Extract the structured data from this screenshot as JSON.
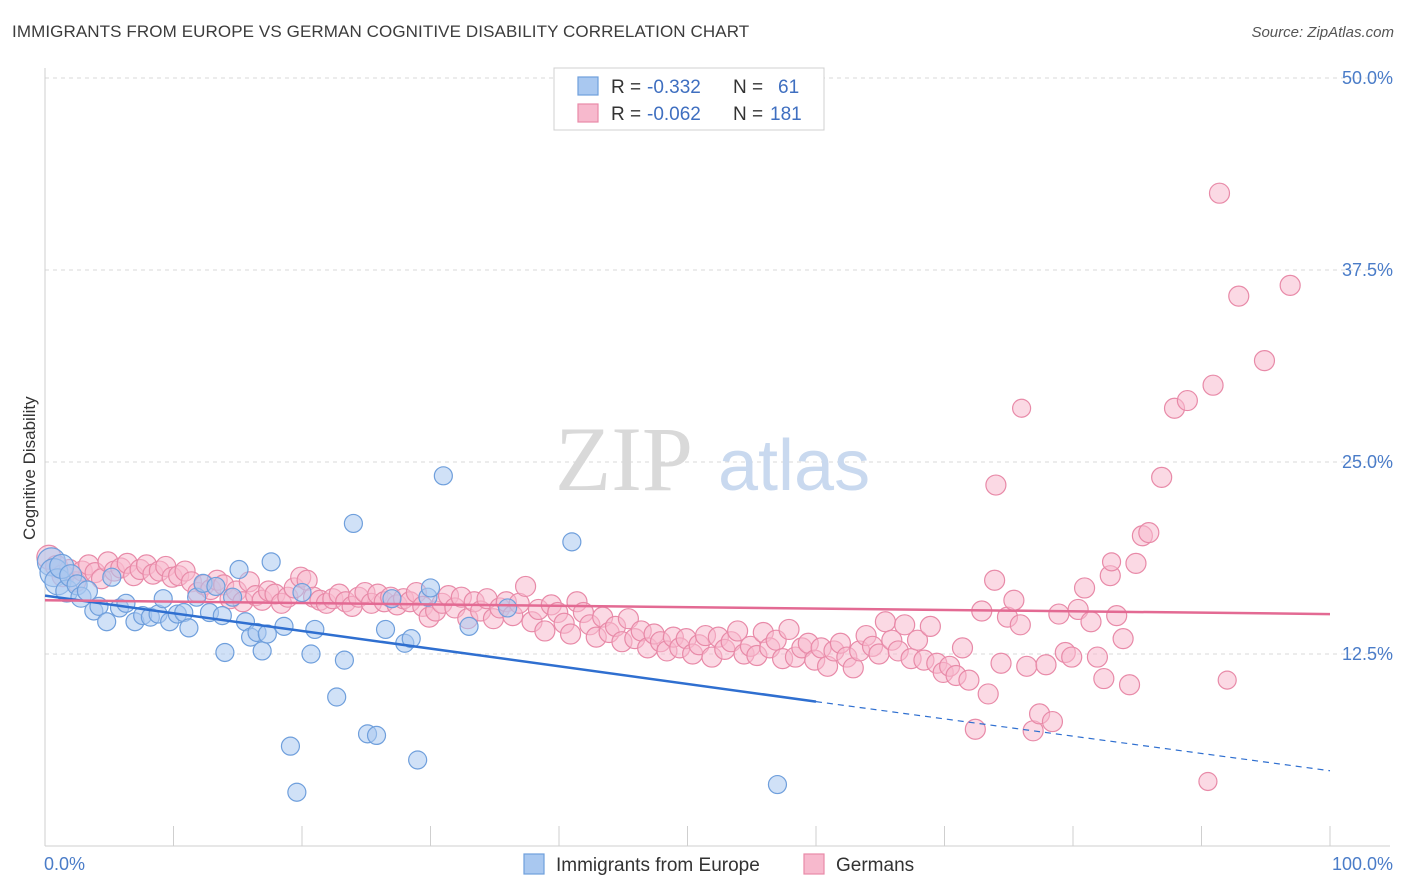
{
  "title": "IMMIGRANTS FROM EUROPE VS GERMAN COGNITIVE DISABILITY CORRELATION CHART",
  "source": "Source: ZipAtlas.com",
  "watermark": {
    "zip": "ZIP",
    "atlas": "atlas"
  },
  "colors": {
    "blue_fill": "#a9c8f0",
    "blue_stroke": "#6f9fdc",
    "blue_line": "#2f6fd0",
    "pink_fill": "#f7b9cd",
    "pink_stroke": "#e88aa8",
    "pink_line": "#e36a93",
    "grid": "#d8d8d8",
    "tick_text": "#4a7cc8"
  },
  "legend_top": {
    "rows": [
      {
        "r_label": "R =",
        "r_value": "-0.332",
        "n_label": "N =",
        "n_value": "61",
        "color": "blue"
      },
      {
        "r_label": "R =",
        "r_value": "-0.062",
        "n_label": "N =",
        "n_value": "181",
        "color": "pink"
      }
    ]
  },
  "chart_data": {
    "type": "scatter",
    "ylabel": "Cognitive Disability",
    "xlim": [
      0,
      100
    ],
    "ylim": [
      0,
      50
    ],
    "x_tick_labels": [
      "0.0%",
      "100.0%"
    ],
    "y_ticks": [
      {
        "value": 12.5,
        "label": "12.5%"
      },
      {
        "value": 25.0,
        "label": "25.0%"
      },
      {
        "value": 37.5,
        "label": "37.5%"
      },
      {
        "value": 50.0,
        "label": "50.0%"
      }
    ],
    "grid": true,
    "legend_position": "bottom",
    "series": [
      {
        "name": "Immigrants from Europe",
        "color": "blue",
        "trend": {
          "x0": 0,
          "y0": 16.3,
          "x1": 60,
          "y1": 9.4,
          "dash_to_x": 100,
          "dash_to_y": 4.9
        },
        "points": [
          [
            0.5,
            18.5
          ],
          [
            0.7,
            17.8
          ],
          [
            1.0,
            17.2
          ],
          [
            1.3,
            18.2
          ],
          [
            1.7,
            16.6
          ],
          [
            2.0,
            17.6
          ],
          [
            2.5,
            17.0
          ],
          [
            2.8,
            16.2
          ],
          [
            3.3,
            16.6
          ],
          [
            3.8,
            15.3
          ],
          [
            4.2,
            15.6
          ],
          [
            4.8,
            14.6
          ],
          [
            5.2,
            17.5
          ],
          [
            5.8,
            15.5
          ],
          [
            6.3,
            15.8
          ],
          [
            7.0,
            14.6
          ],
          [
            7.6,
            15.0
          ],
          [
            8.2,
            14.9
          ],
          [
            8.8,
            15.1
          ],
          [
            9.2,
            16.1
          ],
          [
            9.7,
            14.6
          ],
          [
            10.3,
            15.1
          ],
          [
            10.8,
            15.2
          ],
          [
            11.2,
            14.2
          ],
          [
            11.8,
            16.2
          ],
          [
            12.3,
            17.1
          ],
          [
            12.8,
            15.2
          ],
          [
            13.3,
            16.9
          ],
          [
            13.8,
            15.0
          ],
          [
            14.0,
            12.6
          ],
          [
            14.6,
            16.2
          ],
          [
            15.1,
            18.0
          ],
          [
            15.6,
            14.6
          ],
          [
            16.0,
            13.6
          ],
          [
            16.5,
            13.9
          ],
          [
            16.9,
            12.7
          ],
          [
            17.3,
            13.8
          ],
          [
            17.6,
            18.5
          ],
          [
            18.6,
            14.3
          ],
          [
            19.1,
            6.5
          ],
          [
            19.6,
            3.5
          ],
          [
            20.0,
            16.5
          ],
          [
            20.7,
            12.5
          ],
          [
            21.0,
            14.1
          ],
          [
            22.7,
            9.7
          ],
          [
            23.3,
            12.1
          ],
          [
            24.0,
            21.0
          ],
          [
            25.1,
            7.3
          ],
          [
            25.8,
            7.2
          ],
          [
            26.5,
            14.1
          ],
          [
            27.0,
            16.1
          ],
          [
            28.0,
            13.2
          ],
          [
            28.5,
            13.5
          ],
          [
            29.0,
            5.6
          ],
          [
            29.8,
            16.2
          ],
          [
            30.0,
            16.8
          ],
          [
            31.0,
            24.1
          ],
          [
            33.0,
            14.3
          ],
          [
            36.0,
            15.5
          ],
          [
            41.0,
            19.8
          ],
          [
            57.0,
            4.0
          ]
        ],
        "sizes": [
          14,
          14,
          13,
          12,
          11,
          11,
          10,
          10,
          10,
          9,
          9,
          9,
          9,
          9,
          9,
          9,
          9,
          9,
          9,
          9,
          9,
          9,
          9,
          9,
          9,
          9,
          9,
          9,
          9,
          9,
          9,
          9,
          9,
          9,
          9,
          9,
          9,
          9,
          9,
          9,
          9,
          9,
          9,
          9,
          9,
          9,
          9,
          9,
          9,
          9,
          9,
          9,
          9,
          9,
          9,
          9,
          9,
          9,
          9,
          9,
          9
        ]
      },
      {
        "name": "Germans",
        "color": "pink",
        "trend": {
          "x0": 0,
          "y0": 16.0,
          "x1": 100,
          "y1": 15.1
        },
        "points": [
          [
            0.3,
            18.8
          ],
          [
            0.9,
            18.2
          ],
          [
            1.4,
            17.6
          ],
          [
            1.9,
            18.0
          ],
          [
            2.4,
            17.2
          ],
          [
            2.9,
            17.9
          ],
          [
            3.4,
            18.3
          ],
          [
            3.9,
            17.8
          ],
          [
            4.4,
            17.4
          ],
          [
            4.9,
            18.5
          ],
          [
            5.4,
            17.9
          ],
          [
            5.9,
            18.1
          ],
          [
            6.4,
            18.4
          ],
          [
            6.9,
            17.6
          ],
          [
            7.4,
            18.0
          ],
          [
            7.9,
            18.3
          ],
          [
            8.4,
            17.7
          ],
          [
            8.9,
            17.9
          ],
          [
            9.4,
            18.2
          ],
          [
            9.9,
            17.5
          ],
          [
            10.4,
            17.6
          ],
          [
            10.9,
            17.9
          ],
          [
            11.4,
            17.2
          ],
          [
            11.9,
            16.5
          ],
          [
            12.4,
            17.0
          ],
          [
            12.9,
            16.7
          ],
          [
            13.4,
            17.3
          ],
          [
            13.9,
            17.0
          ],
          [
            14.4,
            16.1
          ],
          [
            14.9,
            16.6
          ],
          [
            15.4,
            15.9
          ],
          [
            15.9,
            17.2
          ],
          [
            16.4,
            16.3
          ],
          [
            16.9,
            16.0
          ],
          [
            17.4,
            16.6
          ],
          [
            17.9,
            16.4
          ],
          [
            18.4,
            15.8
          ],
          [
            18.9,
            16.2
          ],
          [
            19.4,
            16.8
          ],
          [
            19.9,
            17.5
          ],
          [
            20.4,
            17.3
          ],
          [
            20.9,
            16.2
          ],
          [
            21.4,
            16.0
          ],
          [
            21.9,
            15.8
          ],
          [
            22.4,
            16.1
          ],
          [
            22.9,
            16.4
          ],
          [
            23.4,
            15.9
          ],
          [
            23.9,
            15.6
          ],
          [
            24.4,
            16.2
          ],
          [
            24.9,
            16.5
          ],
          [
            25.4,
            15.8
          ],
          [
            25.9,
            16.4
          ],
          [
            26.4,
            15.9
          ],
          [
            26.9,
            16.2
          ],
          [
            27.4,
            15.7
          ],
          [
            27.9,
            16.1
          ],
          [
            28.4,
            15.9
          ],
          [
            28.9,
            16.5
          ],
          [
            29.4,
            15.6
          ],
          [
            29.9,
            14.9
          ],
          [
            30.4,
            15.3
          ],
          [
            30.9,
            15.8
          ],
          [
            31.4,
            16.3
          ],
          [
            31.9,
            15.5
          ],
          [
            32.4,
            16.2
          ],
          [
            32.9,
            14.8
          ],
          [
            33.4,
            15.9
          ],
          [
            33.9,
            15.3
          ],
          [
            34.4,
            16.1
          ],
          [
            34.9,
            14.8
          ],
          [
            35.4,
            15.5
          ],
          [
            35.9,
            15.9
          ],
          [
            36.4,
            15.0
          ],
          [
            36.9,
            15.8
          ],
          [
            37.4,
            16.9
          ],
          [
            37.9,
            14.6
          ],
          [
            38.4,
            15.4
          ],
          [
            38.9,
            14.0
          ],
          [
            39.4,
            15.7
          ],
          [
            39.9,
            15.2
          ],
          [
            40.4,
            14.5
          ],
          [
            40.9,
            13.8
          ],
          [
            41.4,
            15.9
          ],
          [
            41.9,
            15.2
          ],
          [
            42.4,
            14.4
          ],
          [
            42.9,
            13.6
          ],
          [
            43.4,
            14.9
          ],
          [
            43.9,
            13.9
          ],
          [
            44.4,
            14.3
          ],
          [
            44.9,
            13.3
          ],
          [
            45.4,
            14.8
          ],
          [
            45.9,
            13.5
          ],
          [
            46.4,
            14.0
          ],
          [
            46.9,
            12.9
          ],
          [
            47.4,
            13.8
          ],
          [
            47.9,
            13.3
          ],
          [
            48.4,
            12.7
          ],
          [
            48.9,
            13.6
          ],
          [
            49.4,
            12.9
          ],
          [
            49.9,
            13.5
          ],
          [
            50.4,
            12.5
          ],
          [
            50.9,
            13.1
          ],
          [
            51.4,
            13.7
          ],
          [
            51.9,
            12.3
          ],
          [
            52.4,
            13.6
          ],
          [
            52.9,
            12.8
          ],
          [
            53.4,
            13.3
          ],
          [
            53.9,
            14.0
          ],
          [
            54.4,
            12.5
          ],
          [
            54.9,
            13.0
          ],
          [
            55.4,
            12.4
          ],
          [
            55.9,
            13.9
          ],
          [
            56.4,
            12.9
          ],
          [
            56.9,
            13.4
          ],
          [
            57.4,
            12.2
          ],
          [
            57.9,
            14.1
          ],
          [
            58.4,
            12.3
          ],
          [
            58.9,
            12.9
          ],
          [
            59.4,
            13.2
          ],
          [
            59.9,
            12.1
          ],
          [
            60.4,
            12.9
          ],
          [
            60.9,
            11.7
          ],
          [
            61.4,
            12.7
          ],
          [
            61.9,
            13.2
          ],
          [
            62.4,
            12.3
          ],
          [
            62.9,
            11.6
          ],
          [
            63.4,
            12.7
          ],
          [
            63.9,
            13.7
          ],
          [
            64.4,
            13.0
          ],
          [
            64.9,
            12.5
          ],
          [
            65.4,
            14.6
          ],
          [
            65.9,
            13.4
          ],
          [
            66.4,
            12.7
          ],
          [
            66.9,
            14.4
          ],
          [
            67.4,
            12.2
          ],
          [
            67.9,
            13.4
          ],
          [
            68.4,
            12.1
          ],
          [
            68.9,
            14.3
          ],
          [
            69.4,
            11.9
          ],
          [
            69.9,
            11.3
          ],
          [
            70.4,
            11.7
          ],
          [
            70.9,
            11.1
          ],
          [
            71.4,
            12.9
          ],
          [
            71.9,
            10.8
          ],
          [
            72.4,
            7.6
          ],
          [
            72.9,
            15.3
          ],
          [
            73.4,
            9.9
          ],
          [
            73.9,
            17.3
          ],
          [
            74.4,
            11.9
          ],
          [
            74.9,
            14.9
          ],
          [
            75.4,
            16.0
          ],
          [
            75.9,
            14.4
          ],
          [
            76.4,
            11.7
          ],
          [
            76.9,
            7.5
          ],
          [
            77.4,
            8.6
          ],
          [
            77.9,
            11.8
          ],
          [
            78.4,
            8.1
          ],
          [
            78.9,
            15.1
          ],
          [
            79.4,
            12.6
          ],
          [
            79.9,
            12.3
          ],
          [
            80.4,
            15.4
          ],
          [
            80.9,
            16.8
          ],
          [
            81.4,
            14.6
          ],
          [
            81.9,
            12.3
          ],
          [
            82.4,
            10.9
          ],
          [
            82.9,
            17.6
          ],
          [
            83.4,
            15.0
          ],
          [
            83.9,
            13.5
          ],
          [
            84.4,
            10.5
          ],
          [
            84.9,
            18.4
          ],
          [
            85.4,
            20.2
          ],
          [
            85.9,
            20.4
          ],
          [
            86.9,
            24.0
          ],
          [
            87.9,
            28.5
          ],
          [
            88.9,
            29.0
          ],
          [
            90.9,
            30.0
          ],
          [
            91.4,
            42.5
          ],
          [
            92.9,
            35.8
          ],
          [
            94.9,
            31.6
          ],
          [
            96.9,
            36.5
          ],
          [
            74.0,
            23.5
          ],
          [
            76.0,
            28.5
          ],
          [
            83.0,
            18.5
          ],
          [
            90.5,
            4.2
          ],
          [
            92.0,
            10.8
          ]
        ],
        "sizes": [
          12,
          11,
          11,
          10,
          10,
          10,
          10,
          10,
          10,
          10,
          10,
          10,
          10,
          10,
          10,
          10,
          10,
          10,
          10,
          10,
          10,
          10,
          10,
          10,
          10,
          10,
          10,
          10,
          10,
          10,
          10,
          10,
          10,
          10,
          10,
          10,
          10,
          10,
          10,
          10,
          10,
          10,
          10,
          10,
          10,
          10,
          10,
          10,
          10,
          10,
          10,
          10,
          10,
          10,
          10,
          10,
          10,
          10,
          10,
          10,
          10,
          10,
          10,
          10,
          10,
          10,
          10,
          10,
          10,
          10,
          10,
          10,
          10,
          10,
          10,
          10,
          10,
          10,
          10,
          10,
          10,
          10,
          10,
          10,
          10,
          10,
          10,
          10,
          10,
          10,
          10,
          10,
          10,
          10,
          10,
          10,
          10,
          10,
          10,
          10,
          10,
          10,
          10,
          10,
          10,
          10,
          10,
          10,
          10,
          10,
          10,
          10,
          10,
          10,
          10,
          10,
          10,
          10,
          10,
          10,
          10,
          10,
          10,
          10,
          10,
          10,
          10,
          10,
          10,
          10,
          10,
          10,
          10,
          10,
          10,
          10,
          10,
          10,
          10,
          10,
          10,
          10,
          10,
          10,
          10,
          10,
          10,
          10,
          10,
          10,
          10,
          10,
          10,
          10,
          10,
          10,
          10,
          10,
          10,
          10,
          10,
          10,
          10,
          10,
          10,
          10,
          10,
          10,
          10,
          10,
          10,
          10,
          10,
          10,
          10,
          10,
          10,
          10,
          10,
          10,
          10
        ]
      }
    ]
  }
}
